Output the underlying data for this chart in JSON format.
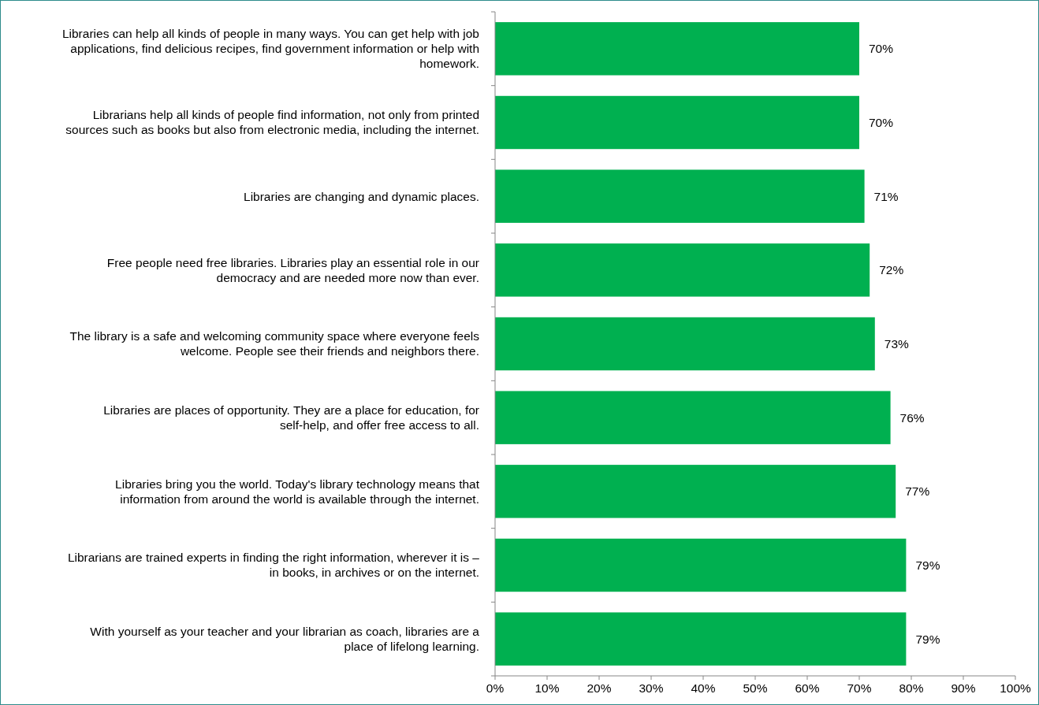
{
  "chart_data": {
    "type": "bar",
    "orientation": "horizontal",
    "categories": [
      "Libraries can help all kinds of people in many ways. You can get help with job applications, find delicious recipes, find government information or help with homework.",
      "Librarians help all kinds of people find information, not only from printed sources such as books but also from electronic media, including the internet.",
      "Libraries are changing and dynamic places.",
      "Free people need free libraries. Libraries play an essential role in our democracy and are needed more now than ever.",
      "The library is a safe and welcoming community space where everyone feels welcome. People see their friends and neighbors there.",
      "Libraries are places of opportunity. They are a place for education, for self-help, and offer free access to all.",
      "Libraries bring you the world. Today's library technology means that information from around the world is available through the internet.",
      "Librarians are trained experts in finding the right information, wherever it is – in books, in archives or on the internet.",
      "With yourself as your teacher and your librarian as coach, libraries are a place of lifelong learning."
    ],
    "values": [
      70,
      70,
      71,
      72,
      73,
      76,
      77,
      79,
      79
    ],
    "value_labels": [
      "70%",
      "70%",
      "71%",
      "72%",
      "73%",
      "76%",
      "77%",
      "79%",
      "79%"
    ],
    "color": "#00b050",
    "xlim": [
      0,
      100
    ],
    "xticks": [
      {
        "value": 0,
        "label": "0%"
      },
      {
        "value": 10,
        "label": "10%"
      },
      {
        "value": 20,
        "label": "20%"
      },
      {
        "value": 30,
        "label": "30%"
      },
      {
        "value": 40,
        "label": "40%"
      },
      {
        "value": 50,
        "label": "50%"
      },
      {
        "value": 60,
        "label": "60%"
      },
      {
        "value": 70,
        "label": "70%"
      },
      {
        "value": 80,
        "label": "80%"
      },
      {
        "value": 90,
        "label": "90%"
      },
      {
        "value": 100,
        "label": "100%"
      }
    ],
    "grid": false
  }
}
